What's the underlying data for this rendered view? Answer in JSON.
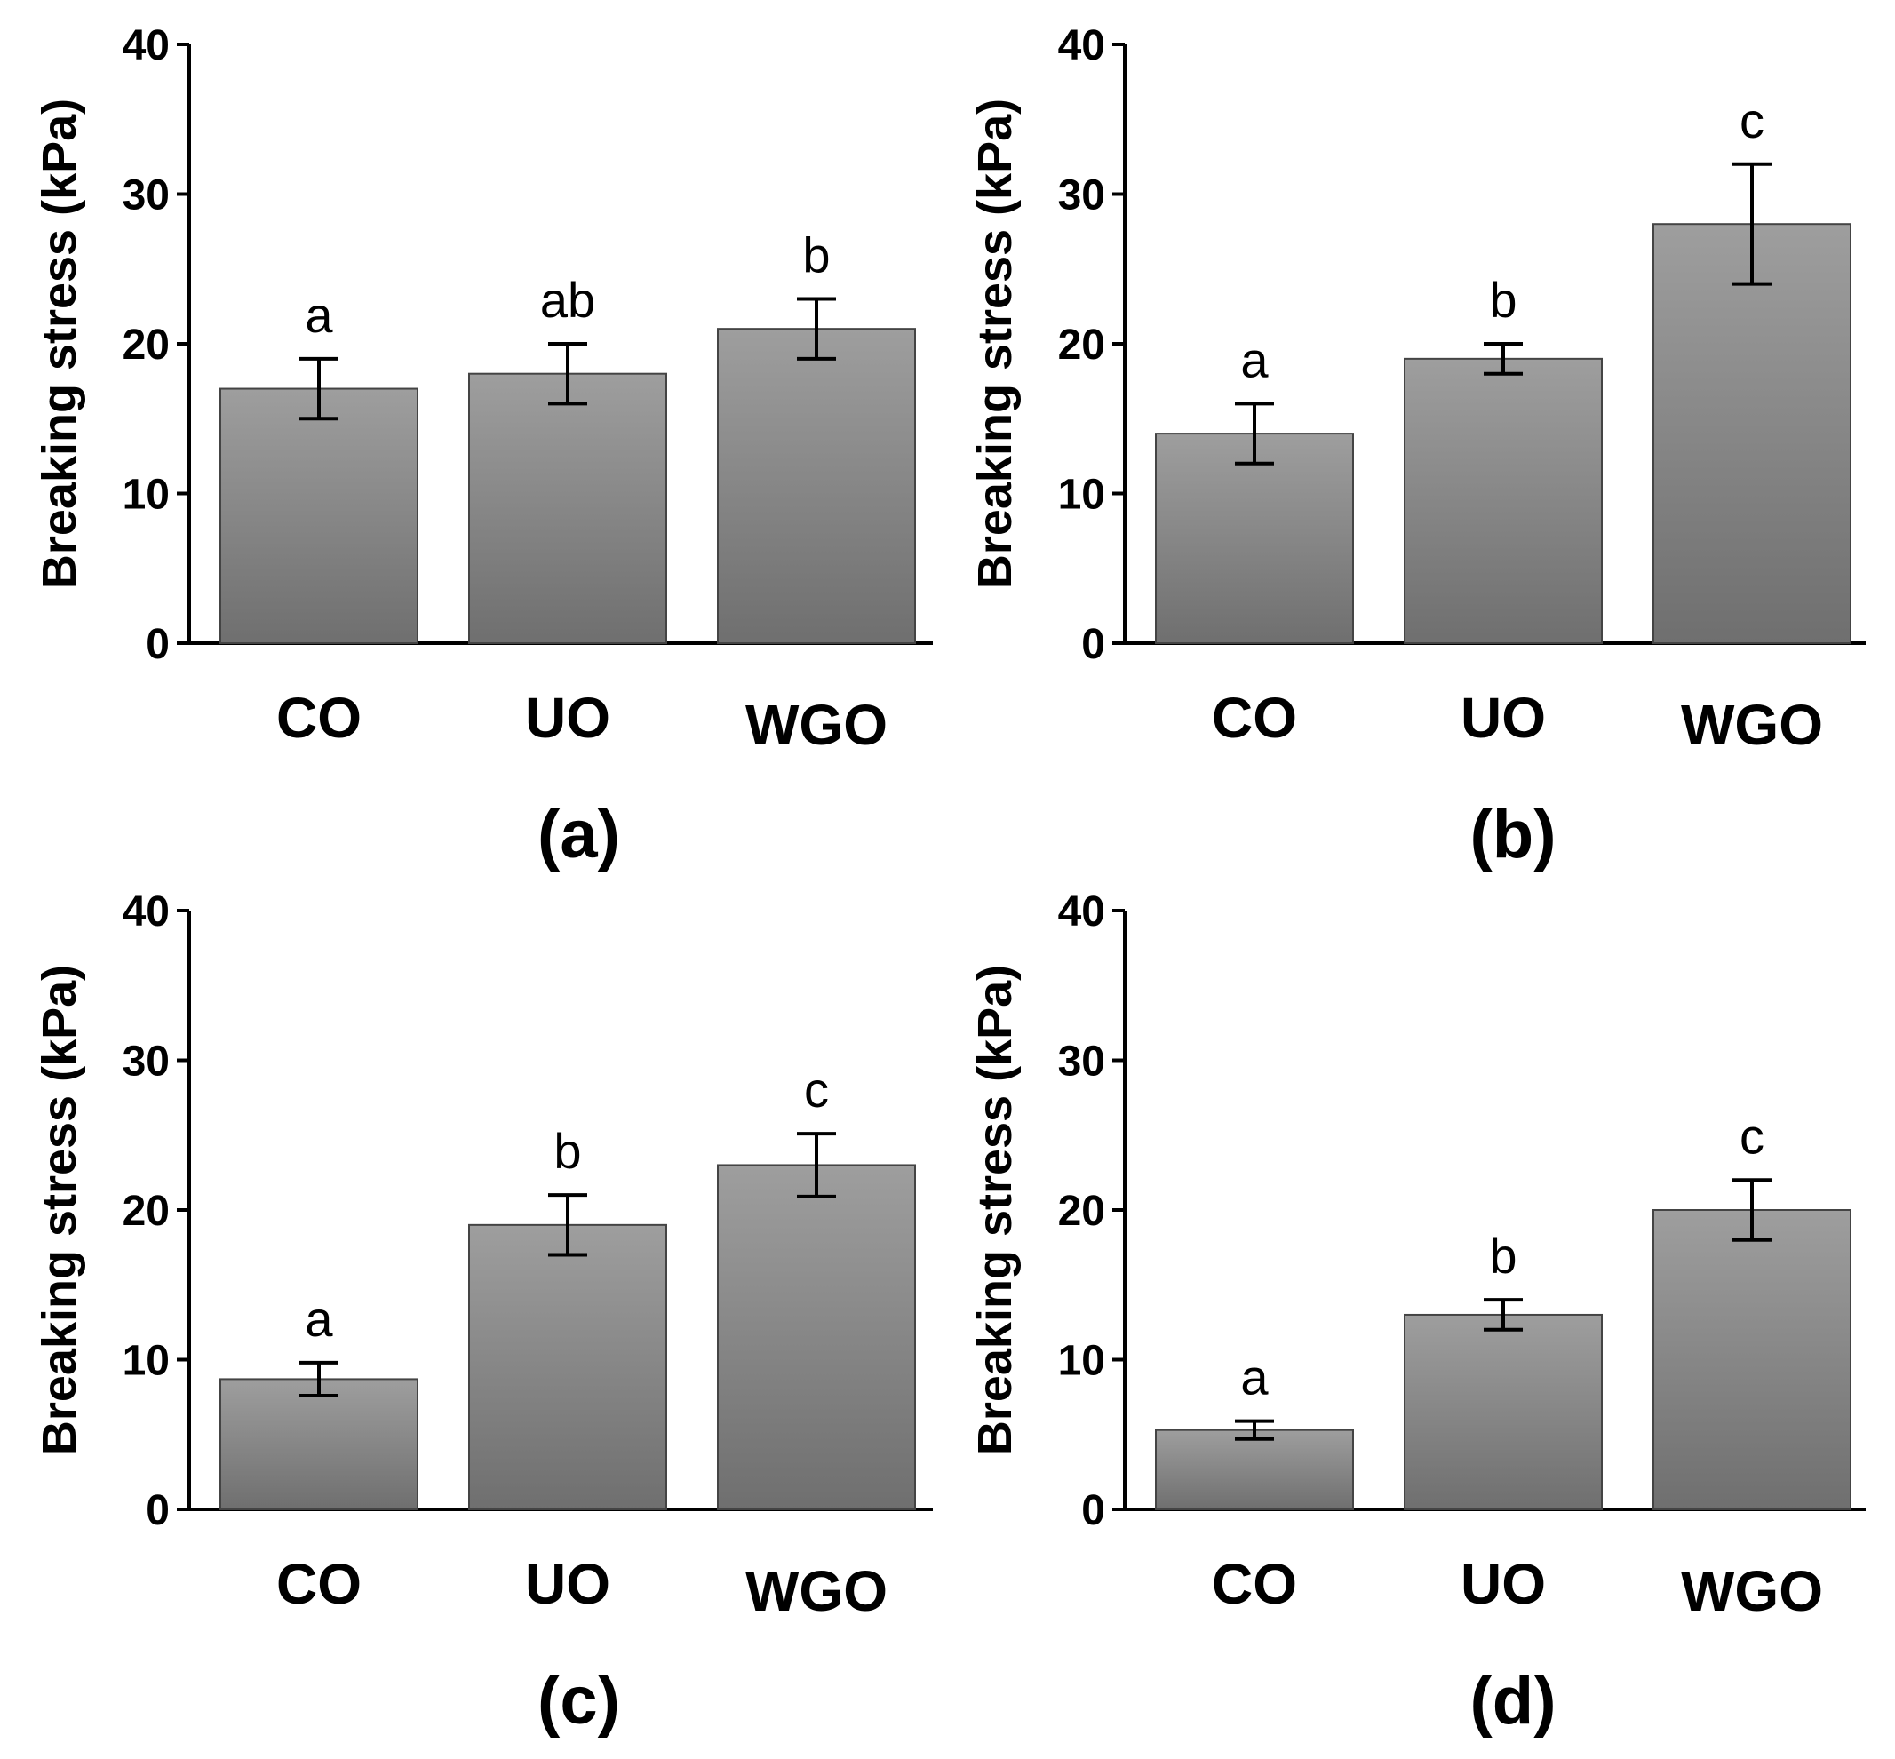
{
  "style": {
    "bar_color_top": "#9e9e9e",
    "bar_color_bottom": "#6f6f6f"
  },
  "chart_data": [
    {
      "type": "bar",
      "panel_label": "(a)",
      "categories": [
        "CO",
        "UO",
        "WGO"
      ],
      "values": [
        17,
        18,
        21
      ],
      "errors": [
        2,
        2,
        2
      ],
      "significance": [
        "a",
        "ab",
        "b"
      ],
      "ylabel": "Breaking stress (kPa)",
      "ylim": [
        0,
        40
      ],
      "yticks": [
        0,
        10,
        20,
        30,
        40
      ]
    },
    {
      "type": "bar",
      "panel_label": "(b)",
      "categories": [
        "CO",
        "UO",
        "WGO"
      ],
      "values": [
        14,
        19,
        28
      ],
      "errors": [
        2,
        1,
        4
      ],
      "significance": [
        "a",
        "b",
        "c"
      ],
      "ylabel": "Breaking stress (kPa)",
      "ylim": [
        0,
        40
      ],
      "yticks": [
        0,
        10,
        20,
        30,
        40
      ]
    },
    {
      "type": "bar",
      "panel_label": "(c)",
      "categories": [
        "CO",
        "UO",
        "WGO"
      ],
      "values": [
        8.7,
        19,
        23
      ],
      "errors": [
        1.1,
        2,
        2.1
      ],
      "significance": [
        "a",
        "b",
        "c"
      ],
      "ylabel": "Breaking stress (kPa)",
      "ylim": [
        0,
        40
      ],
      "yticks": [
        0,
        10,
        20,
        30,
        40
      ]
    },
    {
      "type": "bar",
      "panel_label": "(d)",
      "categories": [
        "CO",
        "UO",
        "WGO"
      ],
      "values": [
        5.3,
        13,
        20
      ],
      "errors": [
        0.6,
        1,
        2
      ],
      "significance": [
        "a",
        "b",
        "c"
      ],
      "ylabel": "Breaking stress (kPa)",
      "ylim": [
        0,
        40
      ],
      "yticks": [
        0,
        10,
        20,
        30,
        40
      ]
    }
  ]
}
